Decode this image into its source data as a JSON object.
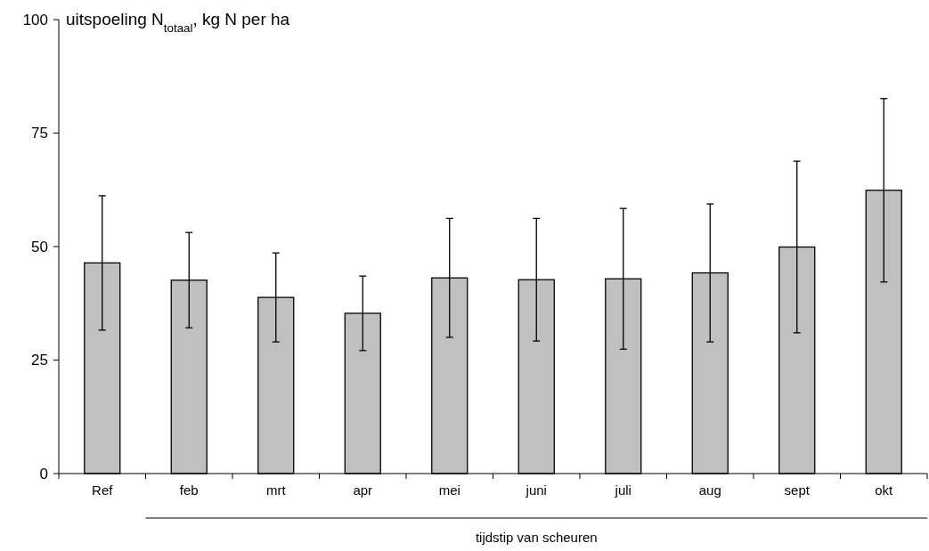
{
  "chart_data": {
    "type": "bar",
    "ylabel": "uitspoeling N$_{totaal}$, kg N per ha",
    "xlabel": "tijdstip van scheuren",
    "categories": [
      "Ref",
      "feb",
      "mrt",
      "apr",
      "mei",
      "juni",
      "juli",
      "aug",
      "sept",
      "okt"
    ],
    "values": [
      46.4,
      42.6,
      38.8,
      35.3,
      43.1,
      42.7,
      42.9,
      44.2,
      49.9,
      62.4
    ],
    "errors": [
      14.8,
      10.5,
      9.8,
      8.2,
      13.1,
      13.5,
      15.5,
      15.2,
      18.9,
      20.2
    ],
    "color": "#c0c0c0",
    "ylim": [
      0,
      100
    ],
    "yticks": [
      0,
      25,
      50,
      75,
      100
    ],
    "grid": false
  }
}
